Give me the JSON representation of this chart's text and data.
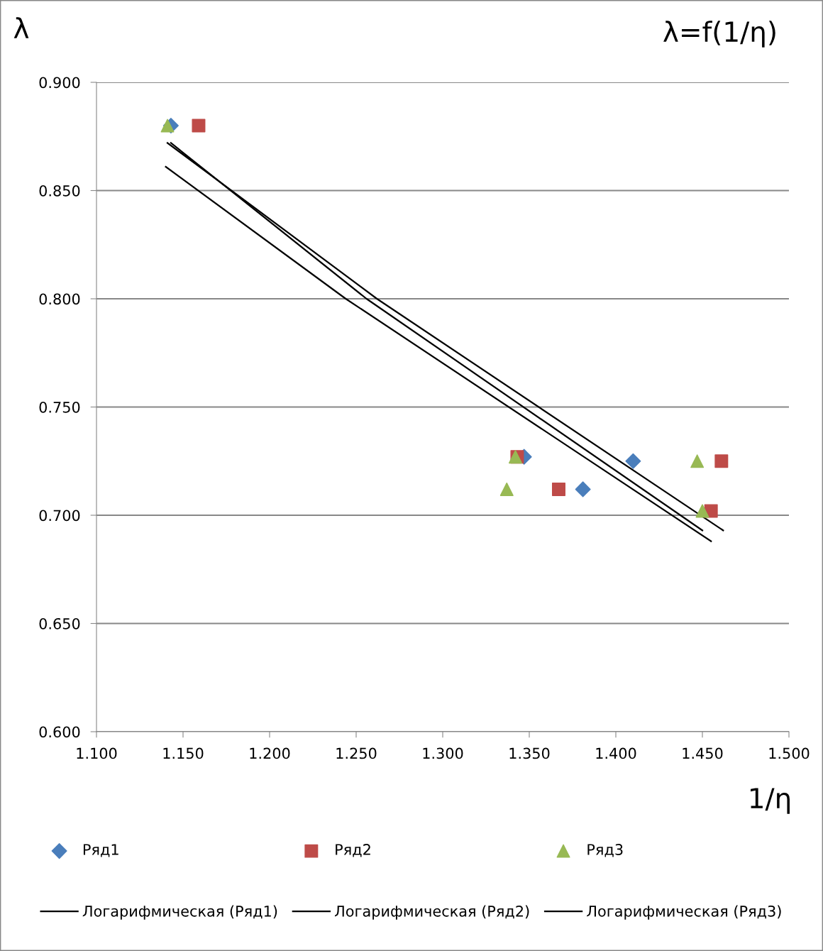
{
  "chart_data": {
    "type": "scatter",
    "title": "λ=f(1/η)",
    "xlabel": "1/η",
    "ylabel": "λ",
    "xlim": [
      1.1,
      1.5
    ],
    "xticks": [
      {
        "value": 1.1,
        "label": "1.100"
      },
      {
        "value": 1.15,
        "label": "1.150"
      },
      {
        "value": 1.2,
        "label": "1.200"
      },
      {
        "value": 1.25,
        "label": "1.250"
      },
      {
        "value": 1.3,
        "label": "1.300"
      },
      {
        "value": 1.35,
        "label": "1.350"
      },
      {
        "value": 1.4,
        "label": "1.400"
      },
      {
        "value": 1.45,
        "label": "1.450"
      },
      {
        "value": 1.5,
        "label": "1.500"
      }
    ],
    "ylim": [
      0.6,
      0.9
    ],
    "yticks": [
      {
        "value": 0.6,
        "label": "0.600"
      },
      {
        "value": 0.65,
        "label": "0.650"
      },
      {
        "value": 0.7,
        "label": "0.700"
      },
      {
        "value": 0.75,
        "label": "0.750"
      },
      {
        "value": 0.8,
        "label": "0.800"
      },
      {
        "value": 0.85,
        "label": "0.850"
      },
      {
        "value": 0.9,
        "label": "0.900"
      }
    ],
    "grid": "y",
    "legend": "bottom",
    "series": [
      {
        "name": "Ряд1",
        "marker": "diamond",
        "color": "#4a7ebb",
        "x": [
          1.143,
          1.347,
          1.381,
          1.41
        ],
        "values": [
          0.88,
          0.727,
          0.712,
          0.725
        ]
      },
      {
        "name": "Логарифмическая (Ряд1)",
        "type": "line",
        "color": "#000000",
        "x": [
          1.143,
          1.256,
          1.45
        ],
        "values": [
          0.872,
          0.8,
          0.693
        ]
      },
      {
        "name": "Ряд2",
        "marker": "square",
        "color": "#be4b48",
        "x": [
          1.159,
          1.343,
          1.367,
          1.461,
          1.455
        ],
        "values": [
          0.88,
          0.727,
          0.712,
          0.725,
          0.702
        ]
      },
      {
        "name": "Логарифмическая (Ряд2)",
        "type": "line",
        "color": "#000000",
        "x": [
          1.141,
          1.262,
          1.462
        ],
        "values": [
          0.872,
          0.8,
          0.693
        ]
      },
      {
        "name": "Ряд3",
        "marker": "triangle",
        "color": "#98b954",
        "x": [
          1.141,
          1.342,
          1.337,
          1.447,
          1.45
        ],
        "values": [
          0.88,
          0.727,
          0.712,
          0.725,
          0.702
        ]
      },
      {
        "name": "Логарифмическая (Ряд3)",
        "type": "line",
        "color": "#000000",
        "x": [
          1.14,
          1.244,
          1.455
        ],
        "values": [
          0.861,
          0.8,
          0.688
        ]
      }
    ]
  }
}
